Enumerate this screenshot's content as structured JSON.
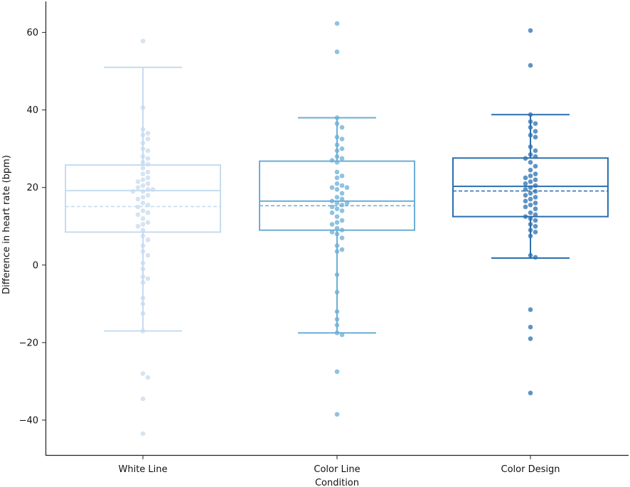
{
  "chart_data": {
    "type": "box",
    "xlabel": "Condition",
    "ylabel": "Difference in heart rate (bpm)",
    "ylim": [
      -49,
      68
    ],
    "yticks": [
      -40,
      -20,
      0,
      20,
      40,
      60
    ],
    "ytick_labels": [
      "−40",
      "−20",
      "0",
      "20",
      "40",
      "60"
    ],
    "categories": [
      "White Line",
      "Color Line",
      "Color Design"
    ],
    "grid": false,
    "series": [
      {
        "category": "White Line",
        "color": "#c6dbef",
        "whisker_low": -17,
        "q1": 8.5,
        "median": 19.2,
        "mean": 15.1,
        "q3": 25.8,
        "whisker_high": 51,
        "points": [
          57.8,
          40.6,
          35,
          34,
          33.5,
          32.5,
          31.5,
          30,
          29.5,
          28,
          27.5,
          26.5,
          26,
          25,
          24,
          23.5,
          22.5,
          22,
          21.5,
          21,
          20.5,
          20,
          19.5,
          19.5,
          19,
          19,
          18,
          17.5,
          17,
          16,
          15.5,
          15,
          14,
          13.5,
          13,
          12,
          11,
          10.5,
          10,
          9,
          7.5,
          6.5,
          5,
          3.5,
          2.5,
          0.5,
          -1,
          -3,
          -3.5,
          -4.5,
          -8.5,
          -10,
          -12.5,
          -17,
          -28,
          -29,
          -34.5,
          -43.5
        ]
      },
      {
        "category": "Color Line",
        "color": "#6baed6",
        "whisker_low": -17.5,
        "q1": 9,
        "median": 16.5,
        "mean": 15.3,
        "q3": 26.8,
        "whisker_high": 38,
        "points": [
          62.3,
          55,
          38,
          36.5,
          35.5,
          33,
          32.5,
          31,
          30,
          29.5,
          28,
          27.5,
          27,
          26.5,
          24,
          23,
          22.5,
          21,
          20.5,
          20,
          20,
          19.5,
          18.5,
          17.5,
          17,
          16.5,
          16,
          16,
          15.5,
          15,
          14.5,
          14,
          13.5,
          12.5,
          11.5,
          11,
          10.5,
          9.5,
          9,
          8.5,
          8,
          7,
          5,
          4,
          3.5,
          -2.5,
          -7,
          -12,
          -14,
          -15.5,
          -17.5,
          -18,
          -27.5,
          -38.5
        ]
      },
      {
        "category": "Color Design",
        "color": "#2b6fae",
        "whisker_low": 1.8,
        "q1": 12.5,
        "median": 20.3,
        "mean": 19.1,
        "q3": 27.6,
        "whisker_high": 38.8,
        "points": [
          60.5,
          51.5,
          38.8,
          37,
          36.5,
          35.5,
          34.5,
          33.5,
          33,
          30.5,
          29.5,
          28.5,
          28,
          27.5,
          26.5,
          25.5,
          24.5,
          23.5,
          23,
          22.5,
          22,
          21.5,
          21,
          20.5,
          20,
          19.5,
          19,
          18.5,
          18,
          17.5,
          17,
          16.5,
          16,
          15.5,
          15,
          14.5,
          13.5,
          13,
          12.5,
          12,
          11.5,
          10.5,
          10,
          9,
          8.5,
          7.5,
          2.5,
          2,
          -11.5,
          -16,
          -19,
          -33
        ]
      }
    ]
  }
}
